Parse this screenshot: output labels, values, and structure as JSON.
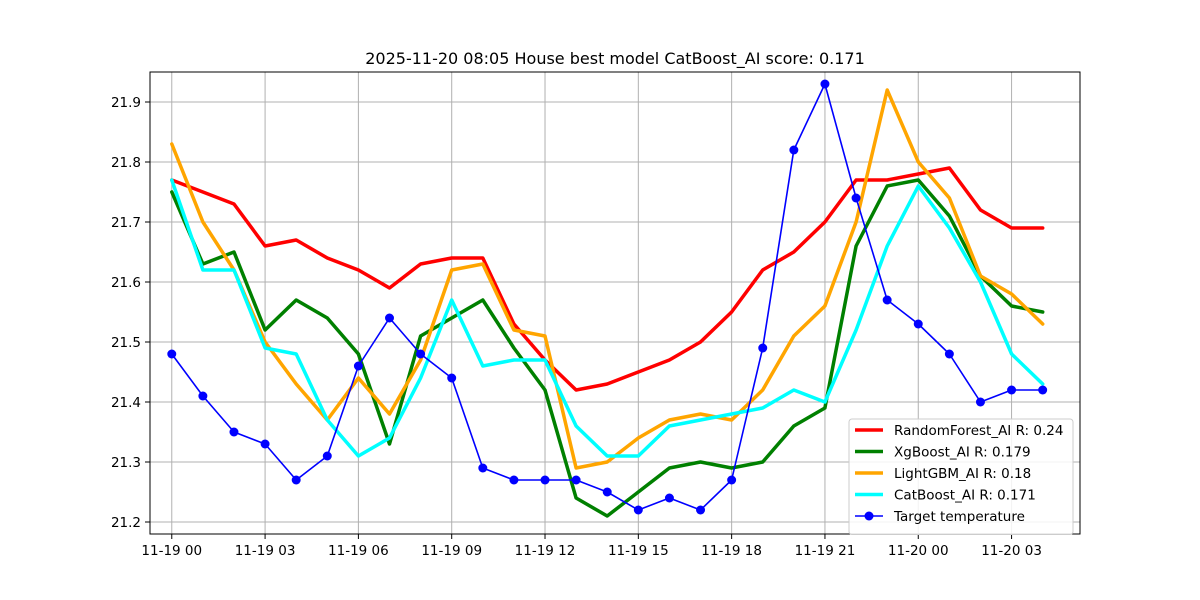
{
  "chart_data": {
    "type": "line",
    "title": "2025-11-20 08:05 House best model CatBoost_AI score: 0.171",
    "xlabel": "",
    "ylabel": "",
    "x": [
      "11-19 00:00",
      "11-19 01:00",
      "11-19 02:00",
      "11-19 03:00",
      "11-19 04:00",
      "11-19 05:00",
      "11-19 06:00",
      "11-19 07:00",
      "11-19 08:00",
      "11-19 09:00",
      "11-19 10:00",
      "11-19 11:00",
      "11-19 12:00",
      "11-19 13:00",
      "11-19 14:00",
      "11-19 15:00",
      "11-19 16:00",
      "11-19 17:00",
      "11-19 18:00",
      "11-19 19:00",
      "11-19 20:00",
      "11-19 21:00",
      "11-19 22:00",
      "11-19 23:00",
      "11-20 00:00",
      "11-20 01:00",
      "11-20 02:00",
      "11-20 03:00",
      "11-20 04:00"
    ],
    "x_ticks": [
      "11-19 00",
      "11-19 03",
      "11-19 06",
      "11-19 09",
      "11-19 12",
      "11-19 15",
      "11-19 18",
      "11-19 21",
      "11-20 00",
      "11-20 03"
    ],
    "y_ticks": [
      "21.2",
      "21.3",
      "21.4",
      "21.5",
      "21.6",
      "21.7",
      "21.8",
      "21.9"
    ],
    "ylim": [
      21.18,
      21.95
    ],
    "grid": true,
    "legend_position": "lower-right",
    "series": [
      {
        "name": "RandomForest_AI R: 0.24",
        "color": "#ff0000",
        "width": 3.5,
        "marker": false,
        "values": [
          21.77,
          21.75,
          21.73,
          21.66,
          21.67,
          21.64,
          21.62,
          21.59,
          21.63,
          21.64,
          21.64,
          21.53,
          21.47,
          21.42,
          21.43,
          21.45,
          21.47,
          21.5,
          21.55,
          21.62,
          21.65,
          21.7,
          21.77,
          21.77,
          21.78,
          21.79,
          21.72,
          21.69,
          21.69
        ]
      },
      {
        "name": "XgBoost_AI R: 0.179",
        "color": "#008000",
        "width": 3.5,
        "marker": false,
        "values": [
          21.75,
          21.63,
          21.65,
          21.52,
          21.57,
          21.54,
          21.48,
          21.33,
          21.51,
          21.54,
          21.57,
          21.49,
          21.42,
          21.24,
          21.21,
          21.25,
          21.29,
          21.3,
          21.29,
          21.3,
          21.36,
          21.39,
          21.66,
          21.76,
          21.77,
          21.71,
          21.61,
          21.56,
          21.55
        ]
      },
      {
        "name": "LightGBM_AI R: 0.18",
        "color": "#ffa500",
        "width": 3.5,
        "marker": false,
        "values": [
          21.83,
          21.7,
          21.62,
          21.5,
          21.43,
          21.37,
          21.44,
          21.38,
          21.47,
          21.62,
          21.63,
          21.52,
          21.51,
          21.29,
          21.3,
          21.34,
          21.37,
          21.38,
          21.37,
          21.42,
          21.51,
          21.56,
          21.7,
          21.92,
          21.8,
          21.74,
          21.61,
          21.58,
          21.53
        ]
      },
      {
        "name": "CatBoost_AI R: 0.171",
        "color": "#00ffff",
        "width": 3.5,
        "marker": false,
        "values": [
          21.77,
          21.62,
          21.62,
          21.49,
          21.48,
          21.37,
          21.31,
          21.34,
          21.44,
          21.57,
          21.46,
          21.47,
          21.47,
          21.36,
          21.31,
          21.31,
          21.36,
          21.37,
          21.38,
          21.39,
          21.42,
          21.4,
          21.52,
          21.66,
          21.76,
          21.69,
          21.6,
          21.48,
          21.43
        ]
      },
      {
        "name": "Target temperature",
        "color": "#0000ff",
        "width": 1.6,
        "marker": true,
        "values": [
          21.48,
          21.41,
          21.35,
          21.33,
          21.27,
          21.31,
          21.46,
          21.54,
          21.48,
          21.44,
          21.29,
          21.27,
          21.27,
          21.27,
          21.25,
          21.22,
          21.24,
          21.22,
          21.27,
          21.49,
          21.82,
          21.93,
          21.74,
          21.57,
          21.53,
          21.48,
          21.4,
          21.42,
          21.42
        ]
      }
    ]
  }
}
